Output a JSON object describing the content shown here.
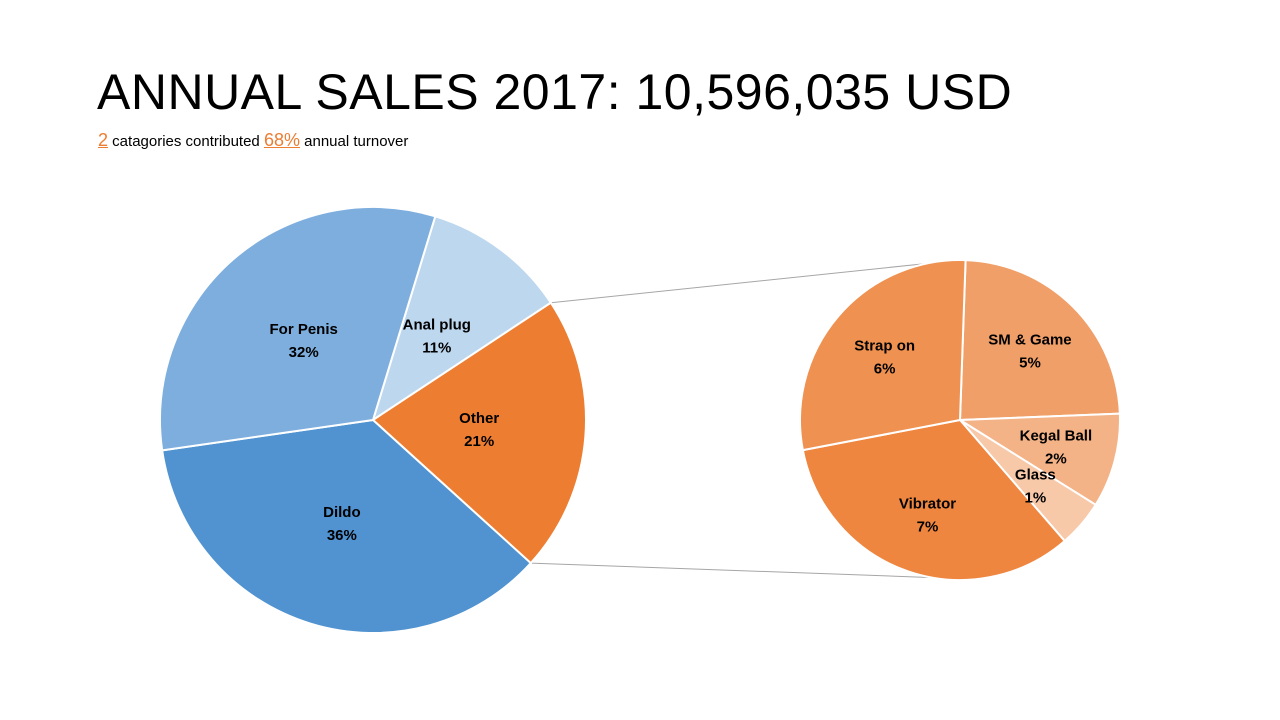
{
  "title": "ANNUAL SALES 2017: 10,596,035 USD",
  "subtitle": {
    "count": "2",
    "text1": " catagories contributed ",
    "percent": "68%",
    "text2": " annual turnover"
  },
  "chart_data": {
    "type": "pie",
    "variant": "pie-of-pie",
    "main_pie": {
      "slices": [
        {
          "label": "Anal plug",
          "value": 11,
          "display": "11%",
          "color": "#BDD7EE"
        },
        {
          "label": "Other",
          "value": 21,
          "display": "21%",
          "color": "#ED7D31"
        },
        {
          "label": "Dildo",
          "value": 36,
          "display": "36%",
          "color": "#5093D0"
        },
        {
          "label": "For Penis",
          "value": 32,
          "display": "32%",
          "color": "#7DAEDE"
        }
      ]
    },
    "secondary_pie": {
      "breakdown_of": "Other",
      "slices": [
        {
          "label": "SM & Game",
          "value": 5,
          "display": "5%",
          "color": "#F09F68"
        },
        {
          "label": "Kegal Ball",
          "value": 2,
          "display": "2%",
          "color": "#F4B387"
        },
        {
          "label": "Glass",
          "value": 1,
          "display": "1%",
          "color": "#F7C9A9"
        },
        {
          "label": "Vibrator",
          "value": 7,
          "display": "7%",
          "color": "#EE8640"
        },
        {
          "label": "Strap on",
          "value": 6,
          "display": "6%",
          "color": "#EF9150"
        }
      ]
    },
    "legend": "none"
  }
}
